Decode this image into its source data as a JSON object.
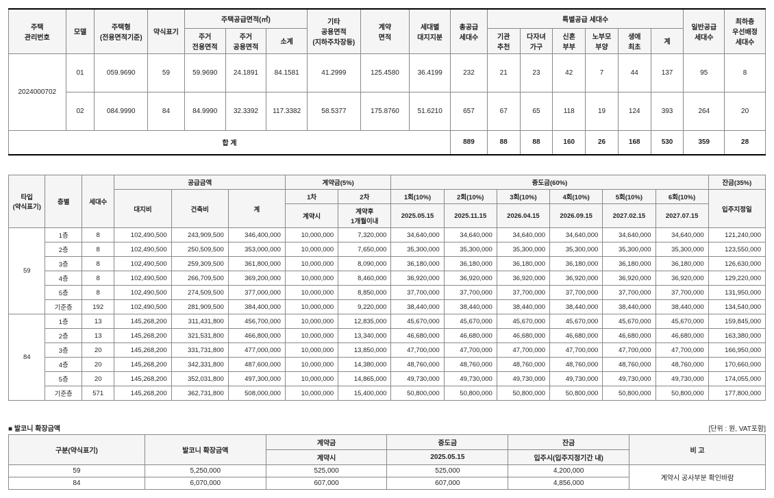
{
  "t1": {
    "headers": {
      "h1": "주택\n관리번호",
      "h2": "모델",
      "h3": "주택형\n(전용면적기준)",
      "h4": "약식표기",
      "h5": "주택공급면적(㎡)",
      "h5a": "주거\n전용면적",
      "h5b": "주거\n공용면적",
      "h5c": "소계",
      "h6": "기타\n공용면적\n(지하주차장등)",
      "h7": "계약\n면적",
      "h8": "세대별\n대지지분",
      "h9": "총공급\n세대수",
      "h10": "특별공급 세대수",
      "h10a": "기관\n추천",
      "h10b": "다자녀\n가구",
      "h10c": "신혼\n부부",
      "h10d": "노부모\n부양",
      "h10e": "생애\n최초",
      "h10f": "계",
      "h11": "일반공급\n세대수",
      "h12": "최하층\n우선배정\n세대수"
    },
    "mgmt": "2024000702",
    "rows": [
      {
        "model": "01",
        "type": "059.9690",
        "abbr": "59",
        "a": "59.9690",
        "b": "24.1891",
        "c": "84.1581",
        "d": "41.2999",
        "e": "125.4580",
        "f": "36.4199",
        "g": "232",
        "s1": "21",
        "s2": "23",
        "s3": "42",
        "s4": "7",
        "s5": "44",
        "s6": "137",
        "gen": "95",
        "low": "8"
      },
      {
        "model": "02",
        "type": "084.9990",
        "abbr": "84",
        "a": "84.9990",
        "b": "32.3392",
        "c": "117.3382",
        "d": "58.5377",
        "e": "175.8760",
        "f": "51.6210",
        "g": "657",
        "s1": "67",
        "s2": "65",
        "s3": "118",
        "s4": "19",
        "s5": "124",
        "s6": "393",
        "gen": "264",
        "low": "20"
      }
    ],
    "sumLabel": "합 계",
    "sum": {
      "g": "889",
      "s1": "88",
      "s2": "88",
      "s3": "160",
      "s4": "26",
      "s5": "168",
      "s6": "530",
      "gen": "359",
      "low": "28"
    }
  },
  "t2": {
    "headers": {
      "type": "타입\n(약식표기)",
      "floor": "층별",
      "units": "세대수",
      "supply": "공급금액",
      "land": "대지비",
      "build": "건축비",
      "tot": "계",
      "deposit": "계약금(5%)",
      "d1": "1차",
      "d2": "2차",
      "d1s": "계약시",
      "d2s": "계약후\n1개월이내",
      "mid": "중도금(60%)",
      "m1": "1회(10%)",
      "m2": "2회(10%)",
      "m3": "3회(10%)",
      "m4": "4회(10%)",
      "m5": "5회(10%)",
      "m6": "6회(10%)",
      "m1d": "2025.05.15",
      "m2d": "2025.11.15",
      "m3d": "2026.04.15",
      "m4d": "2026.09.15",
      "m5d": "2027.02.15",
      "m6d": "2027.07.15",
      "bal": "잔금(35%)",
      "bald": "입주지정일"
    },
    "groups": [
      {
        "type": "59",
        "rows": [
          {
            "fl": "1층",
            "u": "8",
            "land": "102,490,500",
            "build": "243,909,500",
            "tot": "346,400,000",
            "d1": "10,000,000",
            "d2": "7,320,000",
            "m": "34,640,000",
            "bal": "121,240,000"
          },
          {
            "fl": "2층",
            "u": "8",
            "land": "102,490,500",
            "build": "250,509,500",
            "tot": "353,000,000",
            "d1": "10,000,000",
            "d2": "7,650,000",
            "m": "35,300,000",
            "bal": "123,550,000"
          },
          {
            "fl": "3층",
            "u": "8",
            "land": "102,490,500",
            "build": "259,309,500",
            "tot": "361,800,000",
            "d1": "10,000,000",
            "d2": "8,090,000",
            "m": "36,180,000",
            "bal": "126,630,000"
          },
          {
            "fl": "4층",
            "u": "8",
            "land": "102,490,500",
            "build": "266,709,500",
            "tot": "369,200,000",
            "d1": "10,000,000",
            "d2": "8,460,000",
            "m": "36,920,000",
            "bal": "129,220,000"
          },
          {
            "fl": "5층",
            "u": "8",
            "land": "102,490,500",
            "build": "274,509,500",
            "tot": "377,000,000",
            "d1": "10,000,000",
            "d2": "8,850,000",
            "m": "37,700,000",
            "bal": "131,950,000"
          },
          {
            "fl": "기준층",
            "u": "192",
            "land": "102,490,500",
            "build": "281,909,500",
            "tot": "384,400,000",
            "d1": "10,000,000",
            "d2": "9,220,000",
            "m": "38,440,000",
            "bal": "134,540,000"
          }
        ]
      },
      {
        "type": "84",
        "rows": [
          {
            "fl": "1층",
            "u": "13",
            "land": "145,268,200",
            "build": "311,431,800",
            "tot": "456,700,000",
            "d1": "10,000,000",
            "d2": "12,835,000",
            "m": "45,670,000",
            "bal": "159,845,000"
          },
          {
            "fl": "2층",
            "u": "13",
            "land": "145,268,200",
            "build": "321,531,800",
            "tot": "466,800,000",
            "d1": "10,000,000",
            "d2": "13,340,000",
            "m": "46,680,000",
            "bal": "163,380,000"
          },
          {
            "fl": "3층",
            "u": "20",
            "land": "145,268,200",
            "build": "331,731,800",
            "tot": "477,000,000",
            "d1": "10,000,000",
            "d2": "13,850,000",
            "m": "47,700,000",
            "bal": "166,950,000"
          },
          {
            "fl": "4층",
            "u": "20",
            "land": "145,268,200",
            "build": "342,331,800",
            "tot": "487,600,000",
            "d1": "10,000,000",
            "d2": "14,380,000",
            "m": "48,760,000",
            "bal": "170,660,000"
          },
          {
            "fl": "5층",
            "u": "20",
            "land": "145,268,200",
            "build": "352,031,800",
            "tot": "497,300,000",
            "d1": "10,000,000",
            "d2": "14,865,000",
            "m": "49,730,000",
            "bal": "174,055,000"
          },
          {
            "fl": "기준층",
            "u": "571",
            "land": "145,268,200",
            "build": "362,731,800",
            "tot": "508,000,000",
            "d1": "10,000,000",
            "d2": "15,400,000",
            "m": "50,800,000",
            "bal": "177,800,000"
          }
        ]
      }
    ]
  },
  "t3": {
    "caption": "■ 발코니 확장금액",
    "unit": "[단위 : 원, VAT포함]",
    "headers": {
      "type": "구분(약식표기)",
      "amt": "발코니 확장금액",
      "dep": "계약금",
      "depS": "계약시",
      "mid": "중도금",
      "midD": "2025.05.15",
      "bal": "잔금",
      "balD": "입주시(입주지정기간 내)",
      "note": "비 고"
    },
    "rows": [
      {
        "type": "59",
        "amt": "5,250,000",
        "dep": "525,000",
        "mid": "525,000",
        "bal": "4,200,000"
      },
      {
        "type": "84",
        "amt": "6,070,000",
        "dep": "607,000",
        "mid": "607,000",
        "bal": "4,856,000"
      }
    ],
    "note": "계약시 공사부분 확인바람"
  }
}
